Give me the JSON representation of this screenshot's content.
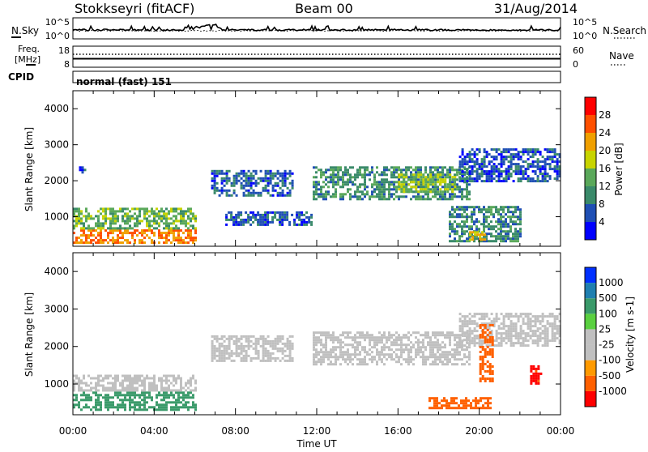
{
  "header": {
    "station": "Stokkseyri (fitACF)",
    "beam": "Beam 00",
    "date": "31/Aug/2014"
  },
  "noise_panel": {
    "left_label": "N.Sky",
    "right_label": "N.Search",
    "left_ticks": [
      "10^5",
      "10^0"
    ],
    "right_ticks": [
      "10^5",
      "10^0"
    ]
  },
  "freq_panel": {
    "left_label_line1": "Freq.",
    "left_label_line2": "[MHz]",
    "right_label": "Nave",
    "left_ticks": [
      "18",
      "8"
    ],
    "right_ticks": [
      "60",
      "0"
    ]
  },
  "cpid": {
    "label": "CPID",
    "value": "normal (fast) 151"
  },
  "colors": {
    "power_scale": [
      "#0000ff",
      "#1f4fb4",
      "#3a8a6a",
      "#5aa85a",
      "#c8d400",
      "#f0a000",
      "#ff5000",
      "#ff0000"
    ],
    "velocity_scale": [
      "#ff0000",
      "#ff6000",
      "#ff9a00",
      "#c0c0c0",
      "#c0c0c0",
      "#5ad040",
      "#3a9a6a",
      "#1f7fb0",
      "#0030ff"
    ],
    "ground_scatter": "#c0c0c0"
  },
  "chart_data": [
    {
      "type": "heatmap",
      "variable": "Power",
      "xlabel": "Time UT",
      "ylabel": "Slant Range [km]",
      "colorbar_label": "Power [dB]",
      "x_range": [
        "00:00",
        "24:00"
      ],
      "x_ticks": [
        "00:00",
        "04:00",
        "08:00",
        "12:00",
        "16:00",
        "20:00",
        "00:00"
      ],
      "y_range": [
        180,
        4500
      ],
      "y_ticks": [
        1000,
        2000,
        3000,
        4000
      ],
      "colorbar_range": [
        0,
        32
      ],
      "colorbar_ticks": [
        4,
        8,
        12,
        16,
        20,
        24,
        28
      ],
      "bands": [
        {
          "t_start": 0.0,
          "t_end": 6.0,
          "r_start": 300,
          "r_end": 650,
          "value": 24
        },
        {
          "t_start": 0.0,
          "t_end": 6.0,
          "r_start": 650,
          "r_end": 1250,
          "value": 14
        },
        {
          "t_start": 0.3,
          "t_end": 0.6,
          "r_start": 2200,
          "r_end": 2400,
          "value": 6
        },
        {
          "t_start": 6.8,
          "t_end": 10.8,
          "r_start": 1600,
          "r_end": 2300,
          "value": 7
        },
        {
          "t_start": 7.5,
          "t_end": 11.8,
          "r_start": 750,
          "r_end": 1150,
          "value": 6
        },
        {
          "t_start": 11.8,
          "t_end": 19.5,
          "r_start": 1500,
          "r_end": 2400,
          "value": 10
        },
        {
          "t_start": 16.0,
          "t_end": 18.8,
          "r_start": 1700,
          "r_end": 2200,
          "value": 16
        },
        {
          "t_start": 19.0,
          "t_end": 24.0,
          "r_start": 2000,
          "r_end": 2900,
          "value": 6
        },
        {
          "t_start": 18.5,
          "t_end": 22.0,
          "r_start": 300,
          "r_end": 1300,
          "value": 10
        },
        {
          "t_start": 19.5,
          "t_end": 20.3,
          "r_start": 350,
          "r_end": 600,
          "value": 20
        }
      ]
    },
    {
      "type": "heatmap",
      "variable": "Velocity",
      "xlabel": "Time UT",
      "ylabel": "Slant Range [km]",
      "colorbar_label": "Velocity [m s-1]",
      "x_range": [
        "00:00",
        "24:00"
      ],
      "x_ticks": [
        "00:00",
        "04:00",
        "08:00",
        "12:00",
        "16:00",
        "20:00",
        "00:00"
      ],
      "y_range": [
        180,
        4500
      ],
      "y_ticks": [
        1000,
        2000,
        3000,
        4000
      ],
      "colorbar_ticks": [
        "1000",
        "500",
        "100",
        "25",
        "-25",
        "-100",
        "-500",
        "-1000"
      ],
      "bands": [
        {
          "t_start": 0.0,
          "t_end": 6.0,
          "r_start": 300,
          "r_end": 800,
          "value": 300
        },
        {
          "t_start": 0.0,
          "t_end": 6.0,
          "r_start": 800,
          "r_end": 1250,
          "value": 0
        },
        {
          "t_start": 6.8,
          "t_end": 10.8,
          "r_start": 1600,
          "r_end": 2300,
          "value": 0
        },
        {
          "t_start": 11.8,
          "t_end": 19.5,
          "r_start": 1500,
          "r_end": 2400,
          "value": 0
        },
        {
          "t_start": 19.0,
          "t_end": 24.0,
          "r_start": 2000,
          "r_end": 2900,
          "value": 0
        },
        {
          "t_start": 17.5,
          "t_end": 20.5,
          "r_start": 350,
          "r_end": 650,
          "value": -200
        },
        {
          "t_start": 20.0,
          "t_end": 20.7,
          "r_start": 1100,
          "r_end": 2600,
          "value": -200
        },
        {
          "t_start": 22.5,
          "t_end": 23.0,
          "r_start": 1000,
          "r_end": 1500,
          "value": -700
        }
      ]
    }
  ]
}
